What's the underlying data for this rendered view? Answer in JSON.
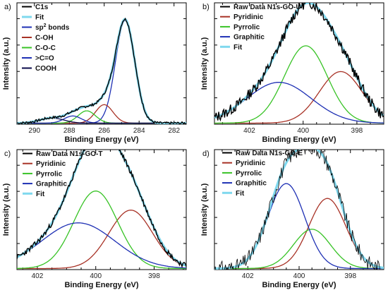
{
  "chart_data": [
    {
      "type": "line",
      "panel_label": "a)",
      "xlabel": "Binding Energy (eV)",
      "ylabel": "Intensity (a.u.)",
      "xlim": [
        291,
        281.3
      ],
      "ylim": [
        0,
        1.18
      ],
      "xreversed": true,
      "x_ticks": [
        290,
        288,
        286,
        284,
        282
      ],
      "legend_position": "top-left",
      "legend": [
        {
          "label": "C1s",
          "color": "#000000"
        },
        {
          "label": "Fit",
          "color": "#7fd8ee"
        },
        {
          "label": "sp",
          "sup": "2",
          "suffix": " bonds",
          "color": "#1e30b4"
        },
        {
          "label": "C-OH",
          "color": "#a83226"
        },
        {
          "label": "C-O-C",
          "color": "#38c326"
        },
        {
          "label": ">C=O",
          "color": "#1e30b4"
        },
        {
          "label": "COOH",
          "color": "#0a0a4a"
        }
      ],
      "components": [
        {
          "name": "sp2 bonds",
          "center": 284.8,
          "amplitude": 1.0,
          "width": 0.55,
          "color": "#1e30b4"
        },
        {
          "name": "C-OH",
          "center": 286.0,
          "amplitude": 0.18,
          "width": 0.5,
          "color": "#a83226"
        },
        {
          "name": "C-O-C",
          "center": 287.0,
          "amplitude": 0.12,
          "width": 0.5,
          "color": "#38c326"
        },
        {
          "name": ">C=O",
          "center": 287.8,
          "amplitude": 0.07,
          "width": 0.5,
          "color": "#1e30b4"
        },
        {
          "name": "COOH",
          "center": 289.0,
          "amplitude": 0.05,
          "width": 0.7,
          "color": "#0a0a4a"
        }
      ]
    },
    {
      "type": "line",
      "panel_label": "b)",
      "xlabel": "Binding Energy (eV)",
      "ylabel": "Intensity (a.u.)",
      "xlim": [
        403.3,
        397.0
      ],
      "ylim": [
        0,
        1.13
      ],
      "xreversed": true,
      "x_ticks": [
        402,
        400,
        398
      ],
      "legend_position": "top-left",
      "legend": [
        {
          "label": "Raw Data N1s-GO-U",
          "color": "#000000"
        },
        {
          "label": "Pyridinic",
          "color": "#a83226"
        },
        {
          "label": "Pyrrolic",
          "color": "#38c326"
        },
        {
          "label": "Graphitic",
          "color": "#1e30b4"
        },
        {
          "label": "Fit",
          "color": "#7fd8ee"
        }
      ],
      "components": [
        {
          "name": "Pyridinic",
          "center": 398.6,
          "amplitude": 0.48,
          "width": 0.8,
          "color": "#a83226"
        },
        {
          "name": "Pyrrolic",
          "center": 399.9,
          "amplitude": 0.72,
          "width": 0.8,
          "color": "#38c326"
        },
        {
          "name": "Graphitic",
          "center": 400.9,
          "amplitude": 0.38,
          "width": 1.2,
          "color": "#1e30b4"
        }
      ]
    },
    {
      "type": "line",
      "panel_label": "c)",
      "xlabel": "Binding Energy (eV)",
      "ylabel": "Intensity (a.u.)",
      "xlim": [
        402.7,
        396.9
      ],
      "ylim": [
        0,
        1.13
      ],
      "xreversed": true,
      "x_ticks": [
        402,
        400,
        398
      ],
      "legend_position": "top-left",
      "legend": [
        {
          "label": "Raw Data N1s-GO-T",
          "color": "#000000"
        },
        {
          "label": "Pyridinic",
          "color": "#a83226"
        },
        {
          "label": "Pyrrolic",
          "color": "#38c326"
        },
        {
          "label": "Graphitic",
          "color": "#1e30b4"
        },
        {
          "label": "Fit",
          "color": "#7fd8ee"
        }
      ],
      "components": [
        {
          "name": "Pyridinic",
          "center": 398.8,
          "amplitude": 0.55,
          "width": 0.75,
          "color": "#a83226"
        },
        {
          "name": "Pyrrolic",
          "center": 400.0,
          "amplitude": 0.73,
          "width": 0.75,
          "color": "#38c326"
        },
        {
          "name": "Graphitic",
          "center": 400.6,
          "amplitude": 0.43,
          "width": 1.25,
          "color": "#1e30b4"
        }
      ]
    },
    {
      "type": "line",
      "panel_label": "d)",
      "xlabel": "Binding Energy (eV)",
      "ylabel": "Intensity (a.u.)",
      "xlim": [
        403.3,
        396.7
      ],
      "ylim": [
        0,
        1.13
      ],
      "xreversed": true,
      "x_ticks": [
        402,
        400,
        398
      ],
      "legend_position": "top-left",
      "legend": [
        {
          "label": "Raw Data N1s-GO-E",
          "color": "#000000"
        },
        {
          "label": "Pyridinic",
          "color": "#a83226"
        },
        {
          "label": "Pyrrolic",
          "color": "#38c326"
        },
        {
          "label": "Graphitic",
          "color": "#1e30b4"
        },
        {
          "label": "Fit",
          "color": "#7fd8ee"
        }
      ],
      "components": [
        {
          "name": "Pyridinic",
          "center": 398.9,
          "amplitude": 0.66,
          "width": 0.72,
          "color": "#a83226"
        },
        {
          "name": "Pyrrolic",
          "center": 399.5,
          "amplitude": 0.37,
          "width": 0.72,
          "color": "#38c326"
        },
        {
          "name": "Graphitic",
          "center": 400.5,
          "amplitude": 0.8,
          "width": 0.72,
          "color": "#1e30b4"
        }
      ]
    }
  ]
}
